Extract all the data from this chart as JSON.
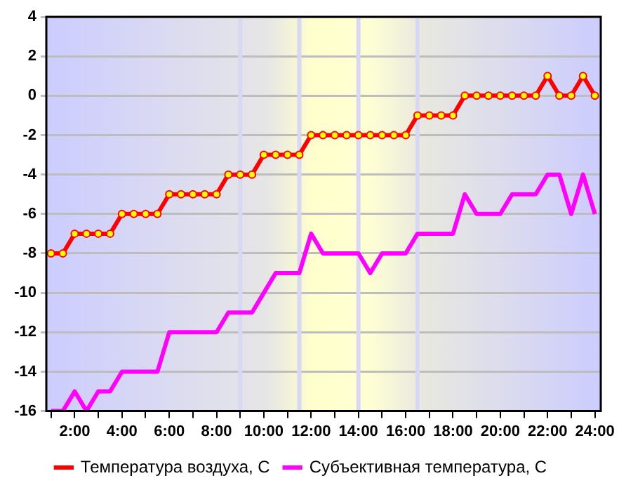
{
  "chart_data": {
    "type": "line",
    "x": [
      1,
      1.5,
      2,
      2.5,
      3,
      3.5,
      4,
      4.5,
      5,
      5.5,
      6,
      6.5,
      7,
      7.5,
      8,
      8.5,
      9,
      9.5,
      10,
      10.5,
      11,
      11.5,
      12,
      12.5,
      13,
      13.5,
      14,
      14.5,
      15,
      15.5,
      16,
      16.5,
      17,
      17.5,
      18,
      18.5,
      19,
      19.5,
      20,
      20.5,
      21,
      21.5,
      22,
      22.5,
      23,
      23.5,
      24
    ],
    "series": [
      {
        "name": "Температура воздуха, С",
        "color": "#ff0000",
        "marker": "circle",
        "values": [
          -8,
          -8,
          -7,
          -7,
          -7,
          -7,
          -6,
          -6,
          -6,
          -6,
          -5,
          -5,
          -5,
          -5,
          -5,
          -4,
          -4,
          -4,
          -3,
          -3,
          -3,
          -3,
          -2,
          -2,
          -2,
          -2,
          -2,
          -2,
          -2,
          -2,
          -2,
          -1,
          -1,
          -1,
          -1,
          0,
          0,
          0,
          0,
          0,
          0,
          0,
          1,
          0,
          0,
          1,
          0
        ]
      },
      {
        "name": "Субъективная температура, С",
        "color": "#ff00ff",
        "marker": "none",
        "values": [
          -16,
          -16,
          -15,
          -16,
          -15,
          -15,
          -14,
          -14,
          -14,
          -14,
          -12,
          -12,
          -12,
          -12,
          -12,
          -11,
          -11,
          -11,
          -10,
          -9,
          -9,
          -9,
          -7,
          -8,
          -8,
          -8,
          -8,
          -9,
          -8,
          -8,
          -8,
          -7,
          -7,
          -7,
          -7,
          -5,
          -6,
          -6,
          -6,
          -5,
          -5,
          -5,
          -4,
          -4,
          -6,
          -4,
          -6
        ]
      }
    ],
    "xlim": [
      0.8,
      24.25
    ],
    "xticks": [
      {
        "value": 1,
        "label": null
      },
      {
        "value": 2,
        "label": "2:00"
      },
      {
        "value": 3,
        "label": null
      },
      {
        "value": 4,
        "label": "4:00"
      },
      {
        "value": 5,
        "label": null
      },
      {
        "value": 6,
        "label": "6:00"
      },
      {
        "value": 7,
        "label": null
      },
      {
        "value": 8,
        "label": "8:00"
      },
      {
        "value": 9,
        "label": null
      },
      {
        "value": 10,
        "label": "10:00"
      },
      {
        "value": 11,
        "label": null
      },
      {
        "value": 12,
        "label": "12:00"
      },
      {
        "value": 13,
        "label": null
      },
      {
        "value": 14,
        "label": "14:00"
      },
      {
        "value": 15,
        "label": null
      },
      {
        "value": 16,
        "label": "16:00"
      },
      {
        "value": 17,
        "label": null
      },
      {
        "value": 18,
        "label": "18:00"
      },
      {
        "value": 19,
        "label": null
      },
      {
        "value": 20,
        "label": "20:00"
      },
      {
        "value": 21,
        "label": null
      },
      {
        "value": 22,
        "label": "22:00"
      },
      {
        "value": 23,
        "label": null
      },
      {
        "value": 24,
        "label": "24:00"
      }
    ],
    "ylim": [
      -16,
      4
    ],
    "yticks": [
      -16,
      -14,
      -12,
      -10,
      -8,
      -6,
      -4,
      -2,
      0,
      2,
      4
    ],
    "ref_lines": [
      {
        "axis": "x",
        "value": 9,
        "color": "#d8d8f4"
      },
      {
        "axis": "x",
        "value": 11.5,
        "color": "#d8d8f4"
      },
      {
        "axis": "x",
        "value": 14,
        "color": "#d8d8f4"
      },
      {
        "axis": "x",
        "value": 16.5,
        "color": "#d8d8f4"
      }
    ],
    "grid": "y",
    "legend": "bottom"
  }
}
